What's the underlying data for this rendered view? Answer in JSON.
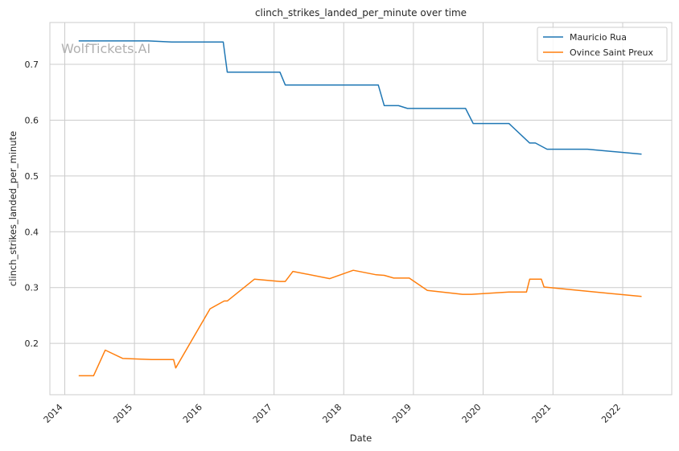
{
  "chart_data": {
    "type": "line",
    "title": "clinch_strikes_landed_per_minute over time",
    "xlabel": "Date",
    "ylabel": "clinch_strikes_landed_per_minute",
    "watermark": "WolfTickets.AI",
    "x_ticks": [
      "2014",
      "2015",
      "2016",
      "2017",
      "2018",
      "2019",
      "2020",
      "2021",
      "2022"
    ],
    "y_ticks": [
      "0.2",
      "0.3",
      "0.4",
      "0.5",
      "0.6",
      "0.7"
    ],
    "xlim": [
      "2013-10-15",
      "2022-09-15"
    ],
    "ylim": [
      0.108,
      0.775
    ],
    "grid": true,
    "legend_position": "top-right",
    "series": [
      {
        "name": "Mauricio Rua",
        "color": "#1f77b4",
        "points": [
          [
            "2014-03-15",
            0.742
          ],
          [
            "2015-03-15",
            0.742
          ],
          [
            "2015-07-15",
            0.74
          ],
          [
            "2016-04-10",
            0.74
          ],
          [
            "2016-05-01",
            0.686
          ],
          [
            "2017-02-01",
            0.686
          ],
          [
            "2017-03-01",
            0.663
          ],
          [
            "2018-07-01",
            0.663
          ],
          [
            "2018-08-01",
            0.626
          ],
          [
            "2018-10-15",
            0.626
          ],
          [
            "2018-12-01",
            0.621
          ],
          [
            "2019-10-01",
            0.621
          ],
          [
            "2019-11-10",
            0.594
          ],
          [
            "2020-05-15",
            0.594
          ],
          [
            "2020-09-01",
            0.559
          ],
          [
            "2020-10-01",
            0.559
          ],
          [
            "2020-12-01",
            0.548
          ],
          [
            "2021-07-01",
            0.548
          ],
          [
            "2022-04-10",
            0.539
          ]
        ]
      },
      {
        "name": "Ovince Saint Preux",
        "color": "#ff7f0e",
        "points": [
          [
            "2014-03-15",
            0.142
          ],
          [
            "2014-06-01",
            0.142
          ],
          [
            "2014-08-01",
            0.188
          ],
          [
            "2014-11-01",
            0.173
          ],
          [
            "2015-04-01",
            0.171
          ],
          [
            "2015-07-25",
            0.171
          ],
          [
            "2015-08-05",
            0.156
          ],
          [
            "2016-02-01",
            0.262
          ],
          [
            "2016-04-15",
            0.276
          ],
          [
            "2016-05-01",
            0.276
          ],
          [
            "2016-09-20",
            0.315
          ],
          [
            "2017-02-01",
            0.311
          ],
          [
            "2017-03-01",
            0.311
          ],
          [
            "2017-04-10",
            0.329
          ],
          [
            "2017-10-20",
            0.316
          ],
          [
            "2018-02-20",
            0.331
          ],
          [
            "2018-06-20",
            0.323
          ],
          [
            "2018-08-01",
            0.322
          ],
          [
            "2018-09-20",
            0.317
          ],
          [
            "2018-12-10",
            0.317
          ],
          [
            "2019-03-15",
            0.295
          ],
          [
            "2019-09-15",
            0.288
          ],
          [
            "2019-11-01",
            0.288
          ],
          [
            "2020-05-15",
            0.292
          ],
          [
            "2020-08-15",
            0.292
          ],
          [
            "2020-09-01",
            0.315
          ],
          [
            "2020-11-01",
            0.315
          ],
          [
            "2020-11-15",
            0.301
          ],
          [
            "2022-04-10",
            0.284
          ]
        ]
      }
    ]
  }
}
